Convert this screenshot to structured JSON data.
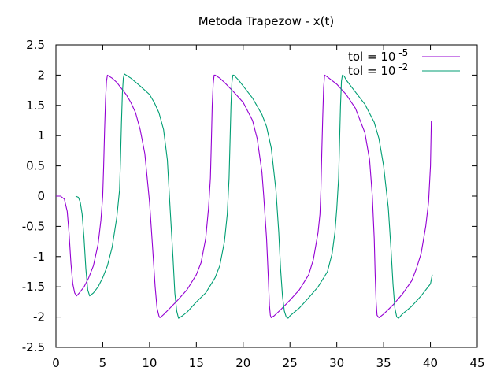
{
  "chart_data": {
    "type": "line",
    "title": "Metoda Trapezow - x(t)",
    "xlabel": "",
    "ylabel": "",
    "xlim": [
      0,
      45
    ],
    "ylim": [
      -2.5,
      2.5
    ],
    "x_ticks": [
      "0",
      "5",
      "10",
      "15",
      "20",
      "25",
      "30",
      "35",
      "40",
      "45"
    ],
    "y_ticks": [
      "2.5",
      "2",
      "1.5",
      "1",
      "0.5",
      "0",
      "-0.5",
      "-1",
      "-1.5",
      "-2",
      "-2.5"
    ],
    "x_tick_values": [
      0,
      5,
      10,
      15,
      20,
      25,
      30,
      35,
      40,
      45
    ],
    "y_tick_values": [
      2.5,
      2,
      1.5,
      1,
      0.5,
      0,
      -0.5,
      -1,
      -1.5,
      -2,
      -2.5
    ],
    "legend_position": "top-right",
    "grid": false,
    "series": [
      {
        "name": "tol = 10",
        "name_exponent": "-5",
        "color": "#9400d3",
        "x": [
          0,
          0.5,
          0.9,
          1.2,
          1.4,
          1.6,
          1.8,
          2.0,
          2.2,
          2.5,
          3.0,
          3.5,
          4.0,
          4.5,
          4.8,
          5.0,
          5.1,
          5.2,
          5.3,
          5.4,
          5.5,
          6.0,
          6.5,
          7.0,
          7.5,
          8.0,
          8.5,
          9.0,
          9.5,
          10.0,
          10.3,
          10.6,
          10.8,
          11.0,
          11.1,
          11.2,
          11.5,
          12.0,
          13.0,
          14.0,
          15.0,
          15.5,
          16.0,
          16.3,
          16.5,
          16.6,
          16.7,
          16.8,
          16.9,
          17.0,
          17.5,
          18.0,
          19.0,
          20.0,
          21.0,
          21.5,
          22.0,
          22.2,
          22.5,
          22.7,
          22.8,
          22.9,
          23.0,
          23.3,
          24.0,
          25.0,
          26.0,
          27.0,
          27.5,
          28.0,
          28.2,
          28.3,
          28.4,
          28.5,
          28.6,
          28.7,
          29.0,
          30.0,
          31.0,
          32.0,
          33.0,
          33.5,
          33.8,
          34.0,
          34.1,
          34.2,
          34.3,
          34.5,
          35.0,
          36.0,
          37.0,
          38.0,
          38.5,
          39.0,
          39.5,
          39.8,
          40.0,
          40.1
        ],
        "y": [
          0,
          0,
          -0.05,
          -0.25,
          -0.6,
          -1.1,
          -1.45,
          -1.6,
          -1.65,
          -1.6,
          -1.5,
          -1.35,
          -1.15,
          -0.8,
          -0.4,
          0.0,
          0.5,
          1.1,
          1.6,
          1.9,
          2.0,
          1.95,
          1.88,
          1.78,
          1.68,
          1.55,
          1.38,
          1.1,
          0.7,
          -0.1,
          -0.8,
          -1.5,
          -1.85,
          -1.98,
          -2.01,
          -2.0,
          -1.96,
          -1.88,
          -1.72,
          -1.55,
          -1.3,
          -1.1,
          -0.7,
          -0.2,
          0.3,
          0.9,
          1.5,
          1.85,
          2.0,
          2.0,
          1.95,
          1.88,
          1.72,
          1.55,
          1.25,
          0.95,
          0.4,
          0.0,
          -0.7,
          -1.4,
          -1.8,
          -1.97,
          -2.01,
          -1.98,
          -1.88,
          -1.72,
          -1.55,
          -1.3,
          -1.05,
          -0.6,
          -0.3,
          0.1,
          0.7,
          1.3,
          1.8,
          2.0,
          1.97,
          1.85,
          1.68,
          1.45,
          1.05,
          0.6,
          0.0,
          -0.7,
          -1.3,
          -1.75,
          -1.97,
          -2.01,
          -1.95,
          -1.8,
          -1.62,
          -1.4,
          -1.2,
          -0.95,
          -0.5,
          -0.1,
          0.5,
          1.25
        ]
      },
      {
        "name": "tol = 10",
        "name_exponent": "-2",
        "color": "#009e73",
        "x": [
          2.1,
          2.4,
          2.6,
          2.8,
          3.0,
          3.2,
          3.4,
          3.6,
          4.0,
          4.5,
          5.0,
          5.5,
          6.0,
          6.5,
          6.8,
          6.9,
          7.0,
          7.1,
          7.2,
          7.3,
          8.0,
          9.0,
          10.0,
          10.5,
          11.0,
          11.5,
          11.9,
          12.2,
          12.5,
          12.7,
          12.9,
          13.1,
          13.5,
          14.0,
          15.0,
          16.0,
          17.0,
          17.5,
          18.0,
          18.3,
          18.5,
          18.6,
          18.7,
          18.8,
          18.9,
          19.0,
          19.5,
          20.0,
          21.0,
          22.0,
          22.5,
          23.0,
          23.5,
          23.8,
          24.0,
          24.2,
          24.4,
          24.6,
          24.8,
          25.0,
          26.0,
          27.0,
          28.0,
          29.0,
          29.5,
          29.8,
          30.0,
          30.2,
          30.3,
          30.4,
          30.5,
          30.6,
          30.8,
          31.0,
          32.0,
          33.0,
          34.0,
          34.5,
          35.0,
          35.5,
          35.8,
          36.0,
          36.2,
          36.4,
          36.6,
          37.0,
          38.0,
          39.0,
          40.0,
          40.2
        ],
        "y": [
          0.0,
          -0.02,
          -0.1,
          -0.3,
          -0.7,
          -1.2,
          -1.55,
          -1.65,
          -1.6,
          -1.5,
          -1.35,
          -1.15,
          -0.85,
          -0.35,
          0.1,
          0.6,
          1.2,
          1.7,
          1.95,
          2.02,
          1.95,
          1.82,
          1.68,
          1.55,
          1.38,
          1.1,
          0.6,
          -0.2,
          -1.0,
          -1.6,
          -1.9,
          -2.02,
          -1.98,
          -1.92,
          -1.75,
          -1.6,
          -1.35,
          -1.15,
          -0.75,
          -0.3,
          0.3,
          0.9,
          1.5,
          1.88,
          2.0,
          2.0,
          1.92,
          1.82,
          1.62,
          1.35,
          1.15,
          0.8,
          0.1,
          -0.6,
          -1.2,
          -1.65,
          -1.9,
          -2.0,
          -2.02,
          -1.98,
          -1.85,
          -1.68,
          -1.5,
          -1.25,
          -0.95,
          -0.6,
          -0.2,
          0.3,
          0.9,
          1.5,
          1.9,
          2.0,
          1.98,
          1.92,
          1.72,
          1.52,
          1.22,
          0.95,
          0.5,
          -0.2,
          -0.9,
          -1.45,
          -1.85,
          -2.0,
          -2.02,
          -1.95,
          -1.82,
          -1.65,
          -1.45,
          -1.3
        ]
      }
    ]
  }
}
